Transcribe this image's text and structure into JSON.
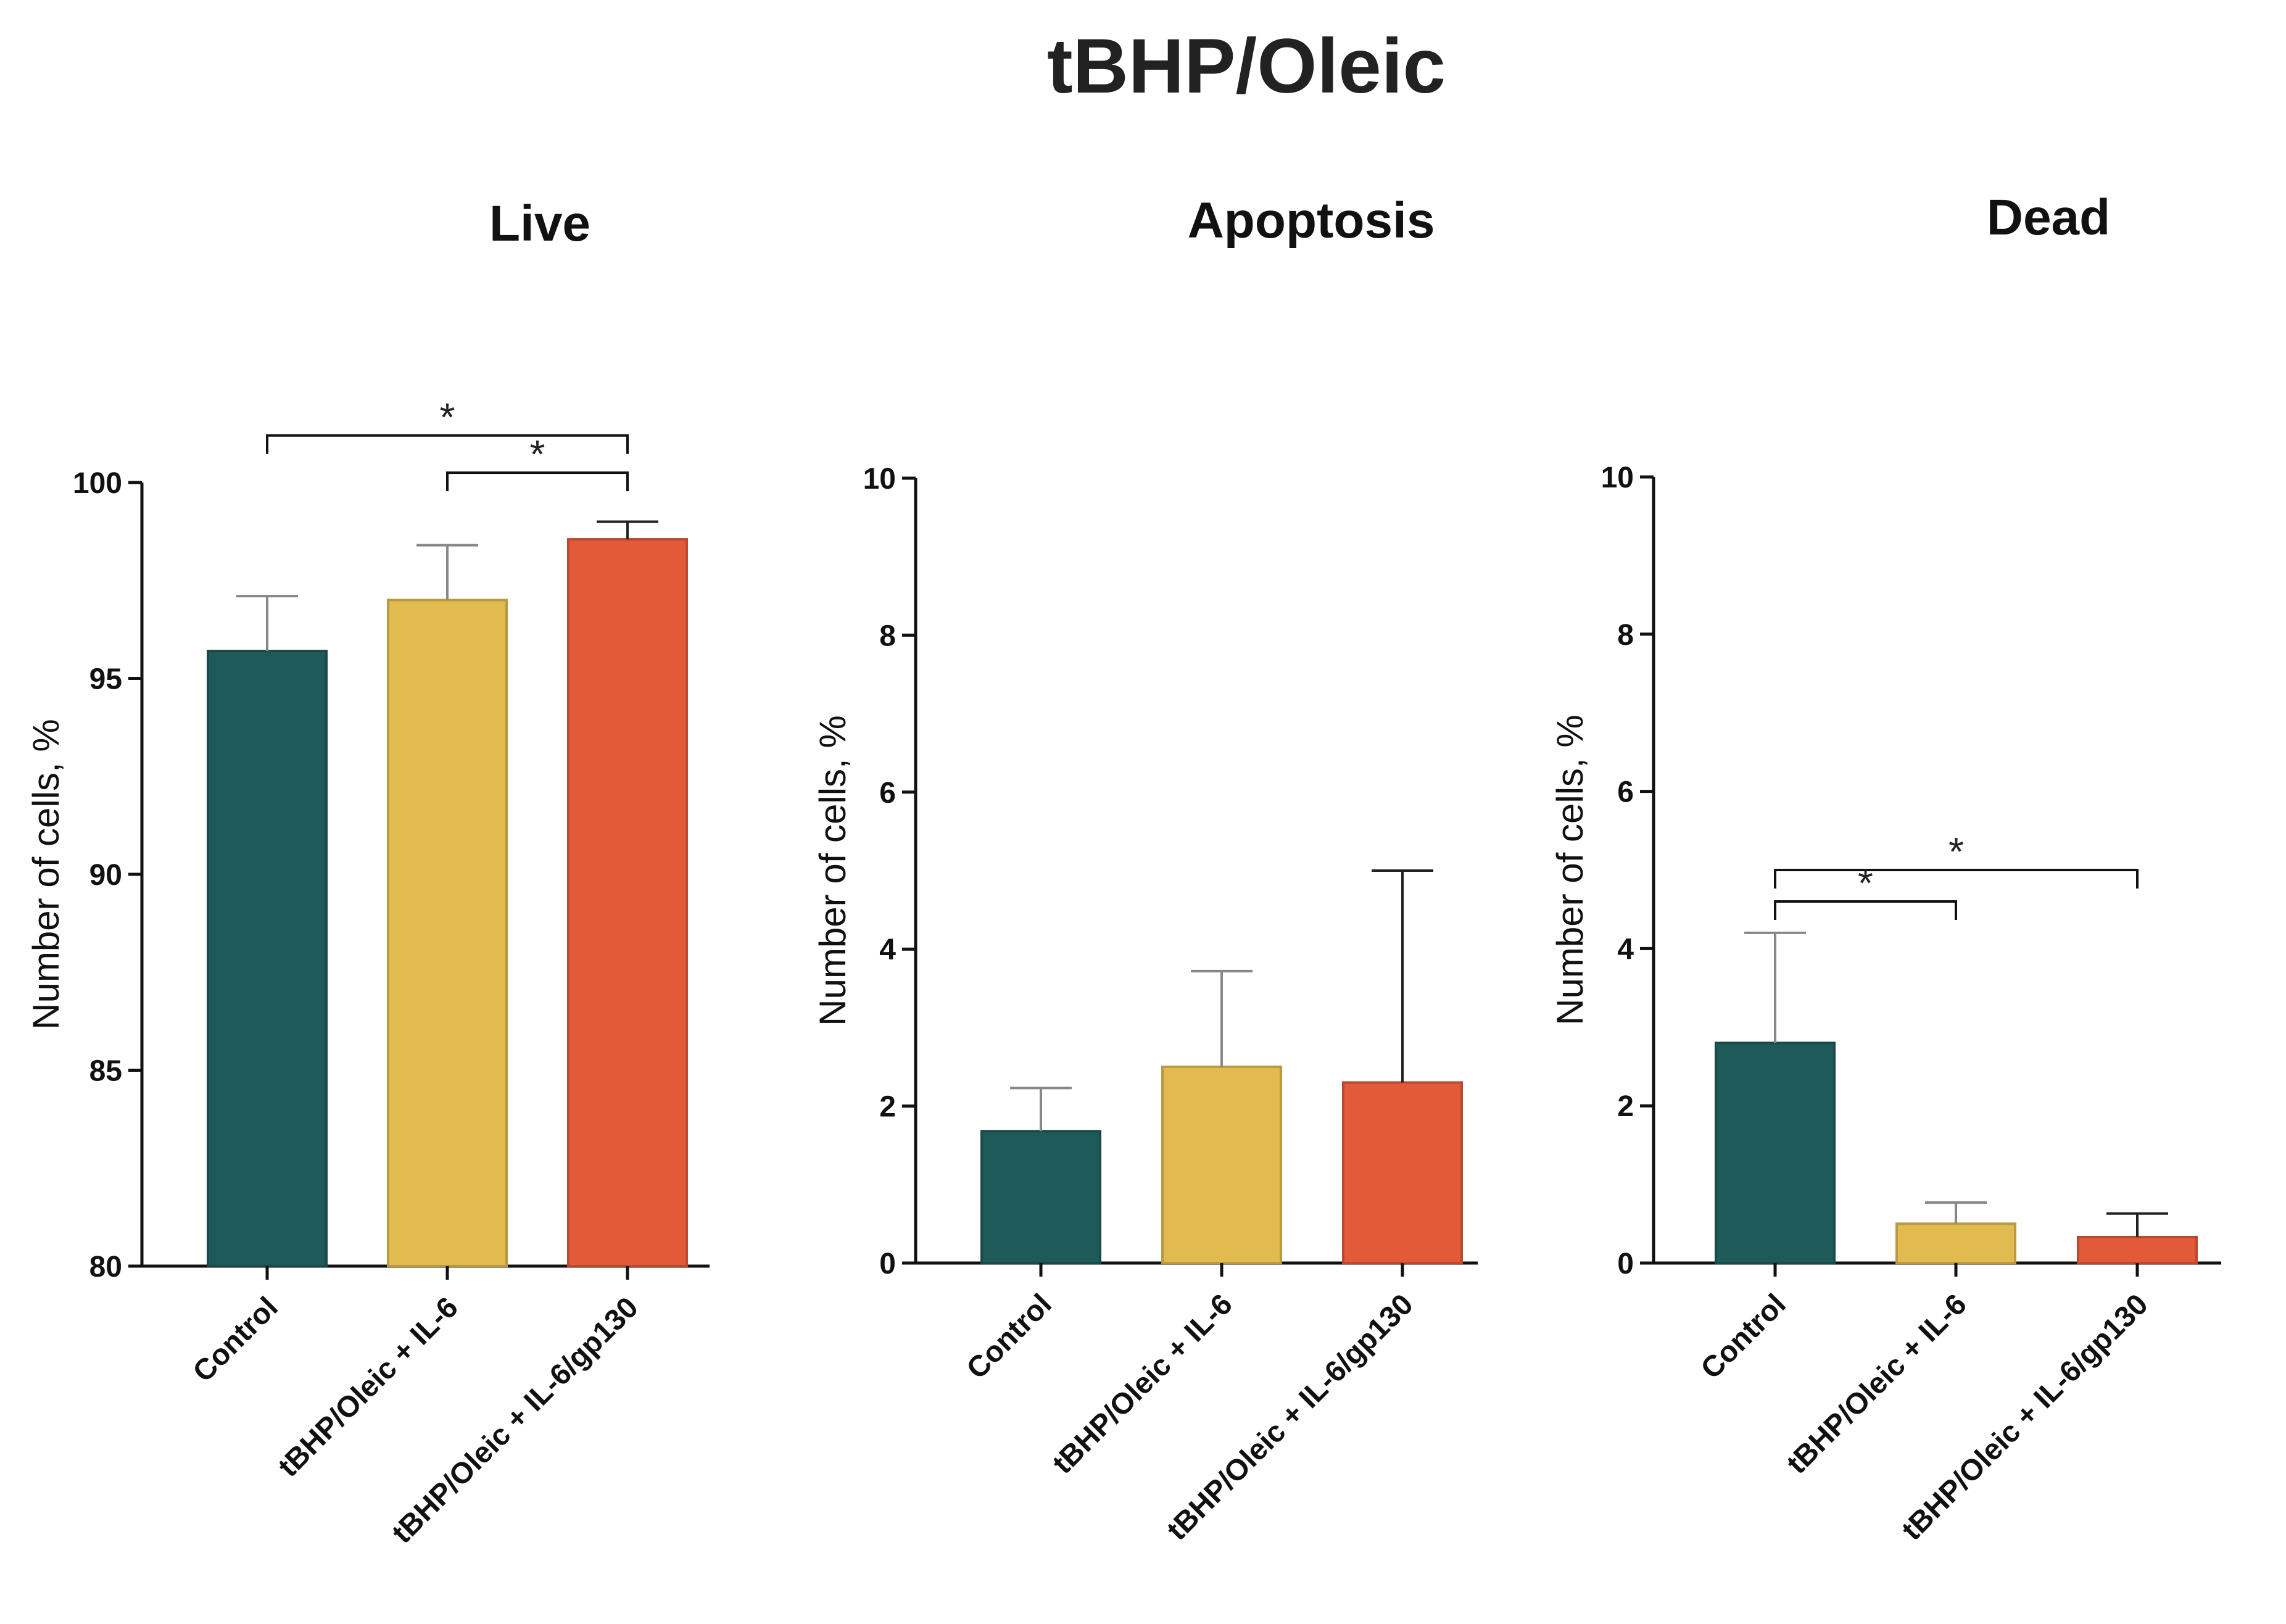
{
  "figure_title": "tBHP/Oleic",
  "colors": {
    "Control": "#1e5a59",
    "tBHP/Oleic + IL-6": "#e2bb50",
    "tBHP/Oleic + IL-6/gp130": "#e25a38"
  },
  "chart_data": [
    {
      "type": "bar",
      "title": "Live",
      "ylabel": "Number of cells, %",
      "xlabel": "",
      "categories": [
        "Control",
        "tBHP/Oleic + IL-6",
        "tBHP/Oleic + IL-6/gp130"
      ],
      "values": [
        95.7,
        97.0,
        98.55
      ],
      "errors": [
        1.4,
        1.4,
        0.45
      ],
      "ylim": [
        80,
        100
      ],
      "yticks": [
        "80",
        "85",
        "90",
        "95",
        "100"
      ],
      "significance": [
        {
          "from": 0,
          "to": 2,
          "label": "*",
          "y": 101.2
        },
        {
          "from": 1,
          "to": 2,
          "label": "*",
          "y": 100.25
        }
      ]
    },
    {
      "type": "bar",
      "title": "Apoptosis",
      "ylabel": "Number of cells, %",
      "xlabel": "",
      "categories": [
        "Control",
        "tBHP/Oleic + IL-6",
        "tBHP/Oleic + IL-6/gp130"
      ],
      "values": [
        1.68,
        2.5,
        2.3
      ],
      "errors": [
        0.55,
        1.22,
        2.7
      ],
      "ylim": [
        0,
        10
      ],
      "yticks": [
        "0",
        "2",
        "4",
        "6",
        "8",
        "10"
      ],
      "significance": []
    },
    {
      "type": "bar",
      "title": "Dead",
      "ylabel": "Number of cells, %",
      "xlabel": "",
      "categories": [
        "Control",
        "tBHP/Oleic + IL-6",
        "tBHP/Oleic + IL-6/gp130"
      ],
      "values": [
        2.8,
        0.5,
        0.33
      ],
      "errors": [
        1.4,
        0.27,
        0.3
      ],
      "ylim": [
        0,
        10
      ],
      "yticks": [
        "0",
        "2",
        "4",
        "6",
        "8",
        "10"
      ],
      "significance": [
        {
          "from": 0,
          "to": 2,
          "label": "*",
          "y": 5.0
        },
        {
          "from": 0,
          "to": 1,
          "label": "*",
          "y": 4.6
        }
      ]
    }
  ]
}
